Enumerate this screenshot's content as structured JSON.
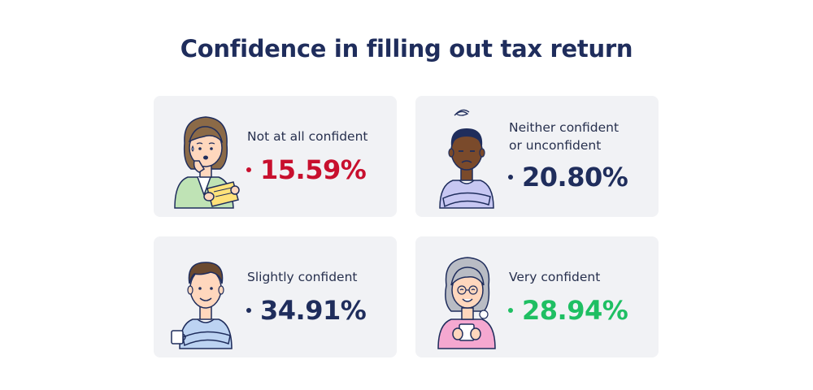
{
  "title": "Confidence in filling out tax return",
  "colors": {
    "navy": "#1f2d5c",
    "red": "#c8102e",
    "green": "#1fbf63",
    "card_bg": "#f1f2f5"
  },
  "cards": [
    {
      "label_line1": "Not at all confident",
      "label_line2": "",
      "value": "15.59%",
      "value_color": "#c8102e",
      "illustration": "worried-woman-reading-paper-icon"
    },
    {
      "label_line1": "Neither confident",
      "label_line2": "or unconfident",
      "value": "20.80%",
      "value_color": "#1f2d5c",
      "illustration": "confused-man-arms-crossed-icon"
    },
    {
      "label_line1": "Slightly confident",
      "label_line2": "",
      "value": "34.91%",
      "value_color": "#1f2d5c",
      "illustration": "man-with-mug-arms-crossed-icon"
    },
    {
      "label_line1": "Very confident",
      "label_line2": "",
      "value": "28.94%",
      "value_color": "#1fbf63",
      "illustration": "smiling-elderly-woman-with-cup-icon"
    }
  ]
}
